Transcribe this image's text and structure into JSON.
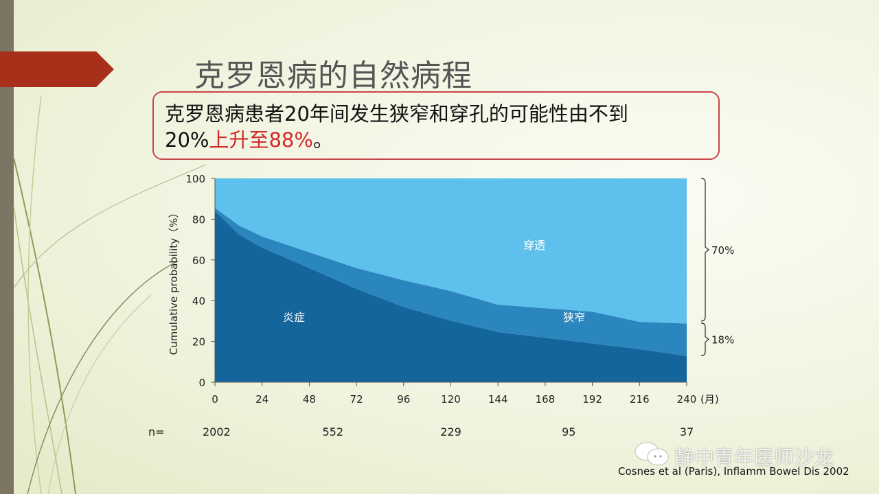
{
  "slide": {
    "title": "克罗恩病的自然病程",
    "callout": {
      "line1": "克罗恩病患者20年间发生狭窄和穿孔的可能性由不到",
      "line2_plain": "20%",
      "line2_highlight": "上升至88%",
      "line2_end": "。",
      "highlight_color": "#d42a2a"
    },
    "n_label": "n=",
    "n_values": [
      {
        "month": 0,
        "n": "2002"
      },
      {
        "month": 60,
        "n": "552"
      },
      {
        "month": 120,
        "n": "229"
      },
      {
        "month": 180,
        "n": "95"
      },
      {
        "month": 240,
        "n": "37"
      }
    ],
    "citation": "Cosnes et al (Paris), Inflamm Bowel Dis 2002",
    "watermark": "静中青年医师沙龙",
    "colors": {
      "accent_arrow": "#a8301a",
      "side_band": "#7d7563",
      "callout_border": "#c9444a"
    }
  },
  "chart_data": {
    "type": "area",
    "stacked": true,
    "ylabel": "Cumulative probability（%）",
    "xunit": "(月)",
    "xlim": [
      0,
      240
    ],
    "ylim": [
      0,
      100
    ],
    "xticks": [
      0,
      24,
      48,
      72,
      96,
      120,
      144,
      168,
      192,
      216,
      240
    ],
    "yticks": [
      0,
      20,
      40,
      60,
      80,
      100
    ],
    "x": [
      0,
      12,
      24,
      48,
      72,
      96,
      120,
      144,
      168,
      192,
      216,
      240
    ],
    "series": [
      {
        "name": "炎症",
        "color": "#13659c",
        "values": [
          84,
          72.6,
          66,
          56,
          45.8,
          36.9,
          30.2,
          24.6,
          21.8,
          19,
          16.2,
          12.8
        ]
      },
      {
        "name": "狭窄",
        "color": "#2a86bd",
        "values": [
          1.5,
          4.4,
          5.5,
          7.7,
          10.2,
          13.1,
          14.5,
          13.4,
          14.5,
          15.6,
          13.4,
          16
        ]
      },
      {
        "name": "穿透",
        "color": "#5ec0ec",
        "values": [
          14.5,
          23,
          28.5,
          36.3,
          44,
          50,
          55.3,
          62,
          63.7,
          65.4,
          70.4,
          71.2
        ]
      }
    ],
    "annotations": [
      {
        "text": "70%",
        "range": [
          30,
          100
        ]
      },
      {
        "text": "18%",
        "range": [
          13,
          29
        ]
      }
    ],
    "grid": false,
    "legend": "none"
  }
}
